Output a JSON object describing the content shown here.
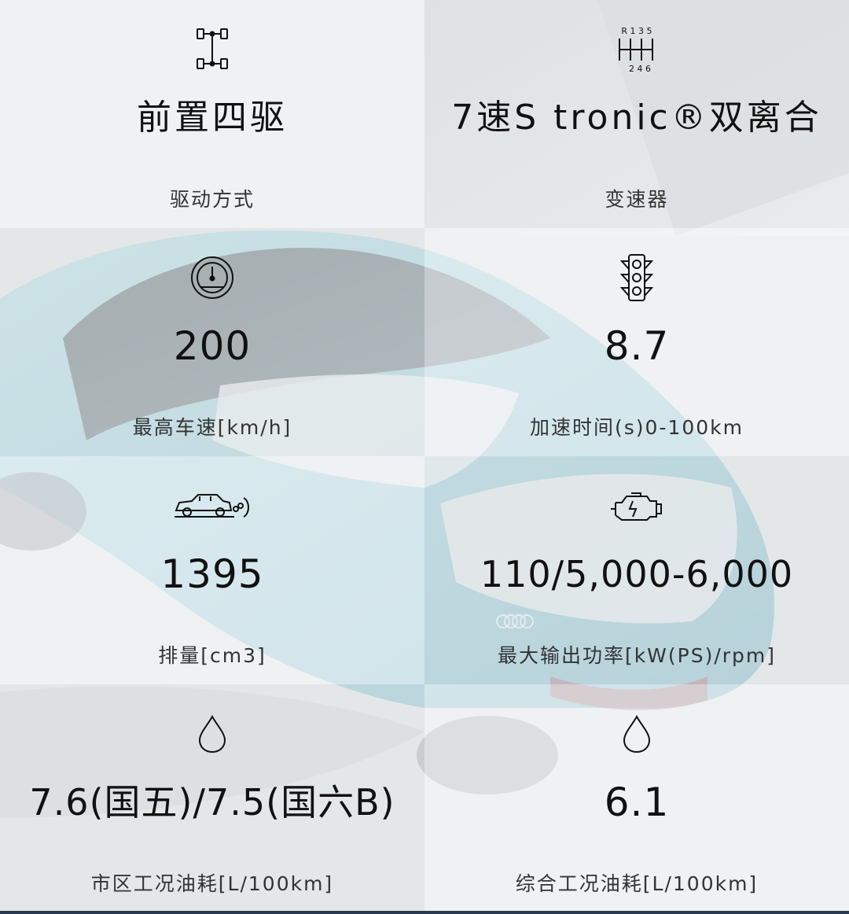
{
  "specs": [
    {
      "icon": "drivetrain-icon",
      "value": "前置四驱",
      "label": "驱动方式"
    },
    {
      "icon": "gearbox-icon",
      "value": "7速S tronic®双离合",
      "label": "变速器",
      "gear_top": "R 1 3 5",
      "gear_bottom": "2 4 6"
    },
    {
      "icon": "speedometer-icon",
      "value": "200",
      "label": "最高车速[km/h]"
    },
    {
      "icon": "traffic-light-icon",
      "value": "8.7",
      "label": "加速时间(s)0-100km"
    },
    {
      "icon": "car-exhaust-icon",
      "value": "1395",
      "label": "排量[cm3]"
    },
    {
      "icon": "engine-icon",
      "value": "110/5,000-6,000",
      "label": "最大输出功率[kW(PS)/rpm]"
    },
    {
      "icon": "fuel-drop-icon",
      "value": "7.6(国五)/7.5(国六B)",
      "label": "市区工况油耗[L/100km]"
    },
    {
      "icon": "fuel-drop-icon",
      "value": "6.1",
      "label": "综合工况油耗[L/100km]"
    }
  ],
  "colors": {
    "text": "#111111",
    "label": "#333333",
    "car_body": "#8fd0dc",
    "bottom_bar": "#2b3b4f"
  }
}
